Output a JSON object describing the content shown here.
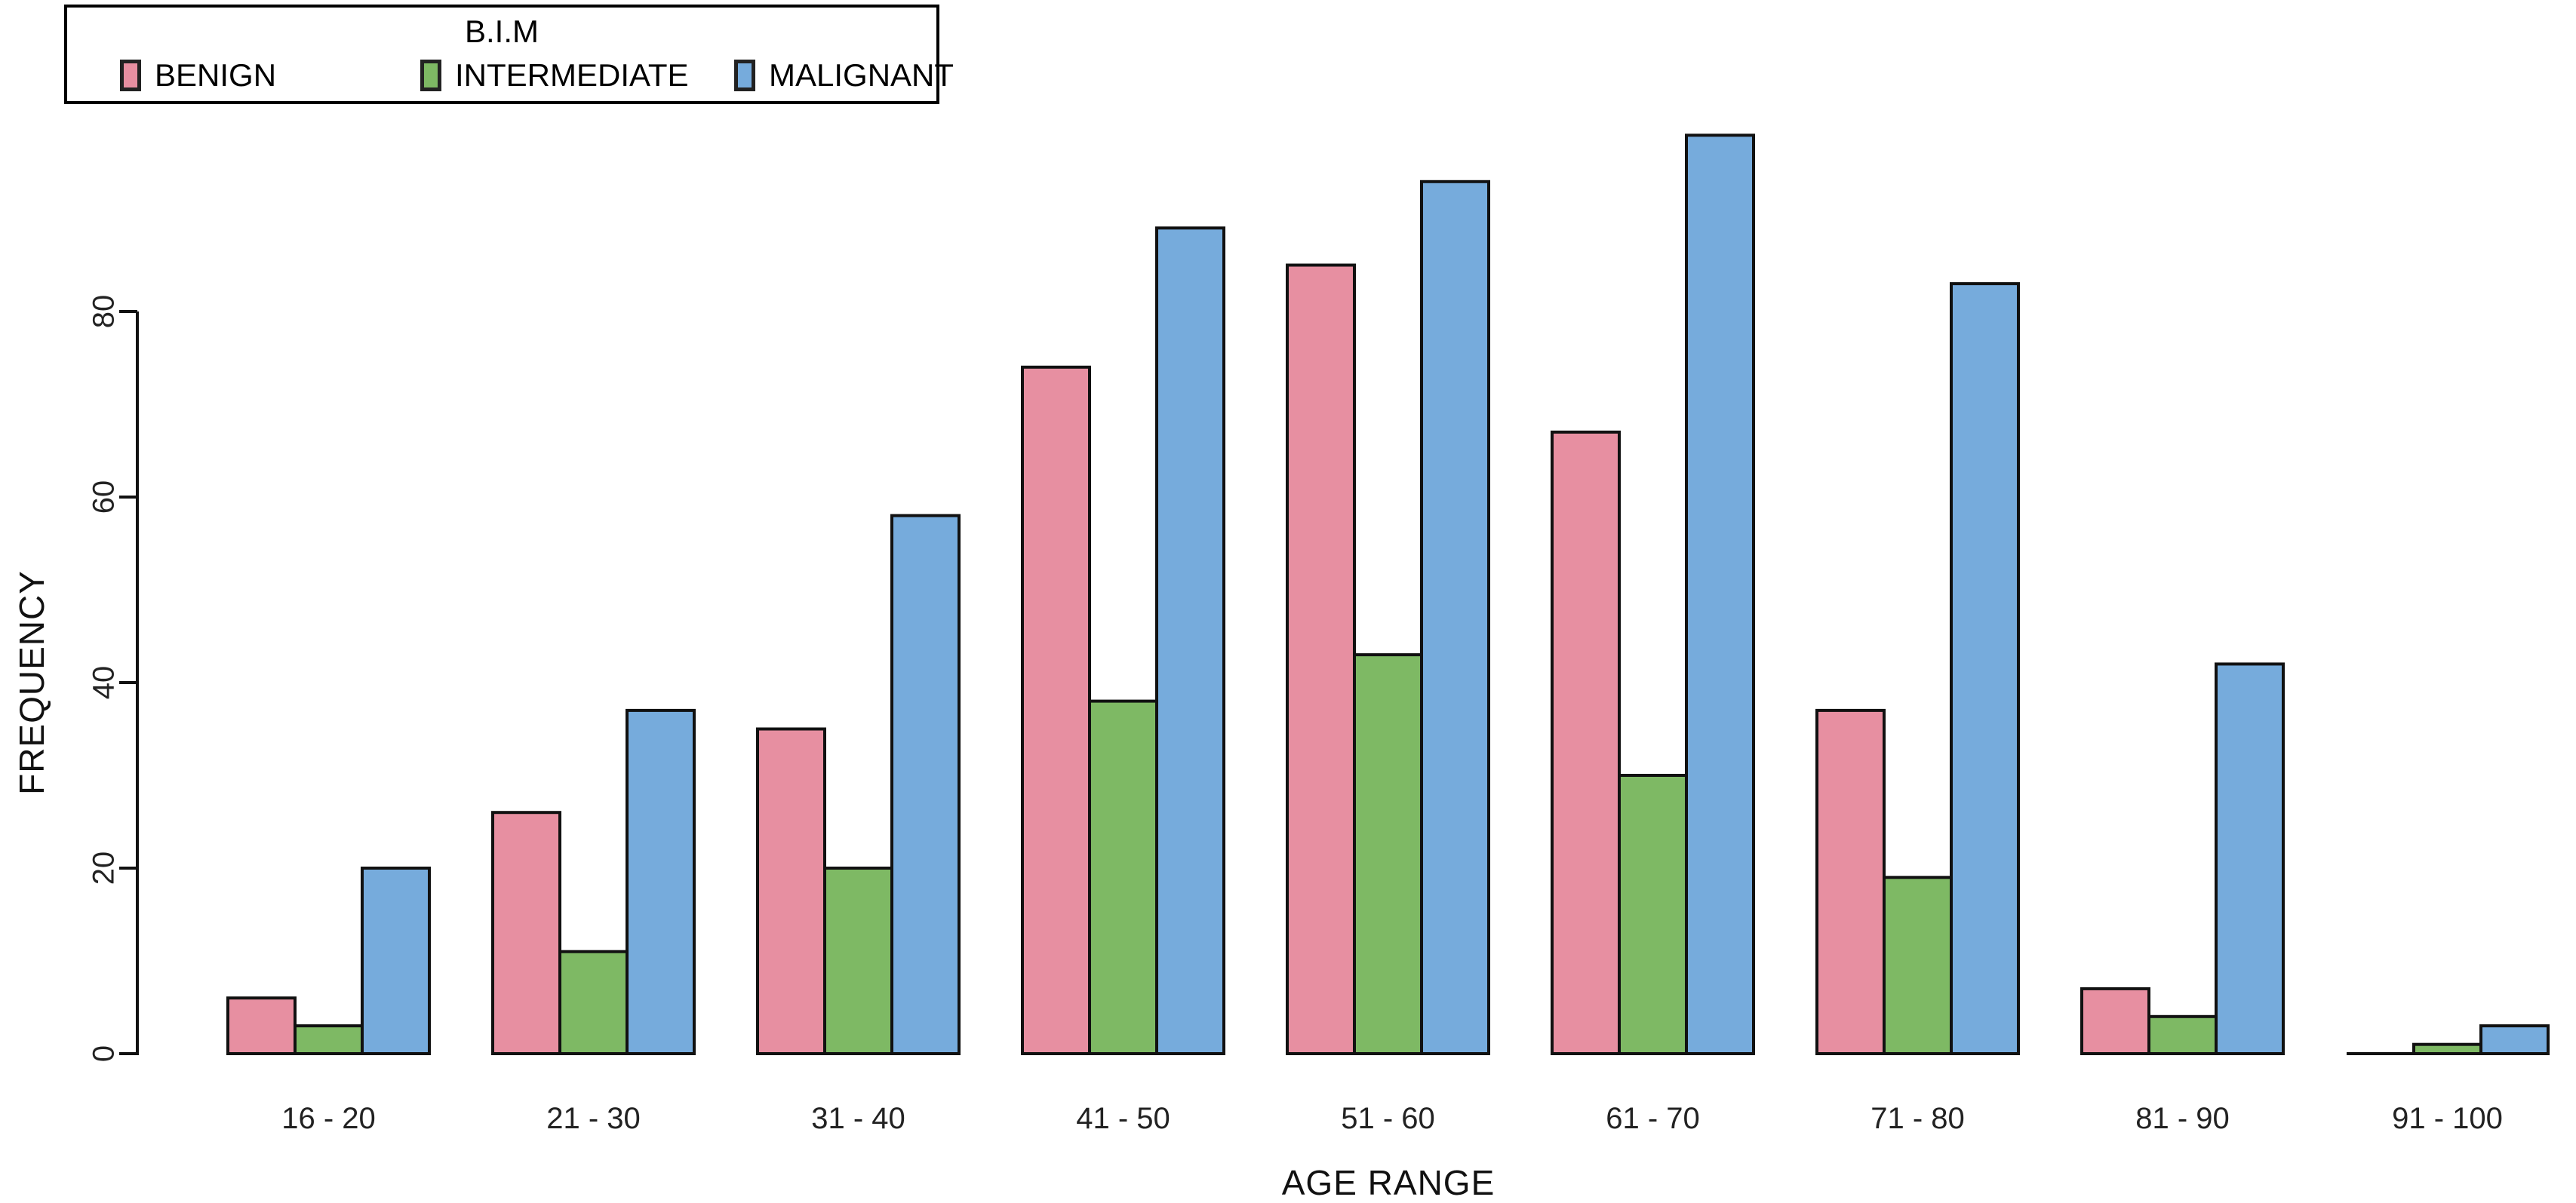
{
  "page": {
    "background": "#ffffff"
  },
  "legend": {
    "title": "B.I.M",
    "entries": [
      {
        "label": "BENIGN",
        "color": "#E78FA1"
      },
      {
        "label": "INTERMEDIATE",
        "color": "#7EB964"
      },
      {
        "label": "MALIGNANT",
        "color": "#76ABDC"
      }
    ]
  },
  "axes": {
    "x_label": "AGE RANGE",
    "y_label": "FREQUENCY",
    "y_ticks": [
      0,
      20,
      40,
      60,
      80
    ]
  },
  "chart_data": {
    "type": "bar",
    "title": "",
    "categories": [
      "16 - 20",
      "21 - 30",
      "31 - 40",
      "41 - 50",
      "51 - 60",
      "61 - 70",
      "71 - 80",
      "81 - 90",
      "91 - 100"
    ],
    "series": [
      {
        "name": "BENIGN",
        "color": "#E78FA1",
        "values": [
          6,
          26,
          35,
          74,
          85,
          67,
          37,
          7,
          0
        ]
      },
      {
        "name": "INTERMEDIATE",
        "color": "#7EB964",
        "values": [
          3,
          11,
          20,
          38,
          43,
          30,
          19,
          4,
          1
        ]
      },
      {
        "name": "MALIGNANT",
        "color": "#76ABDC",
        "values": [
          20,
          37,
          58,
          89,
          94,
          99,
          83,
          42,
          3
        ]
      }
    ],
    "xlabel": "AGE RANGE",
    "ylabel": "FREQUENCY",
    "ylim": [
      0,
      100
    ],
    "bar_outline": "#111111",
    "grid": false,
    "legend_position": "top-left",
    "legend_title": "B.I.M"
  }
}
